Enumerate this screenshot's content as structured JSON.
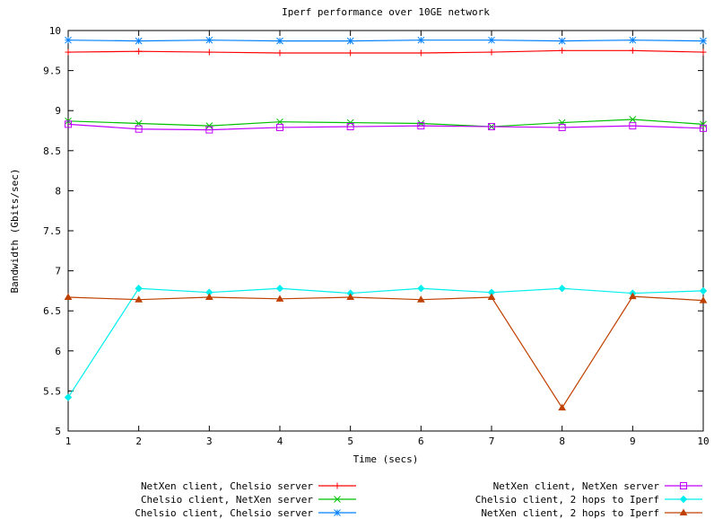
{
  "chart_data": {
    "type": "line",
    "title": "Iperf performance over 10GE network",
    "xlabel": "Time (secs)",
    "ylabel": "Bandwidth (Gbits/sec)",
    "xlim": [
      1,
      10
    ],
    "ylim": [
      5,
      10
    ],
    "xticks": [
      "1",
      "2",
      "3",
      "4",
      "5",
      "6",
      "7",
      "8",
      "9",
      "10"
    ],
    "yticks": [
      "5",
      "5.5",
      "6",
      "6.5",
      "7",
      "7.5",
      "8",
      "8.5",
      "9",
      "9.5",
      "10"
    ],
    "grid": false,
    "legend_position": "bottom",
    "x": [
      1,
      2,
      3,
      4,
      5,
      6,
      7,
      8,
      9,
      10
    ],
    "series": [
      {
        "name": "NetXen client, Chelsio server",
        "color": "#ff0000",
        "marker": "plus",
        "values": [
          9.73,
          9.74,
          9.73,
          9.72,
          9.72,
          9.72,
          9.73,
          9.75,
          9.75,
          9.73
        ]
      },
      {
        "name": "Chelsio client, NetXen server",
        "color": "#00c000",
        "marker": "cross",
        "values": [
          8.87,
          8.84,
          8.81,
          8.86,
          8.85,
          8.84,
          8.8,
          8.85,
          8.89,
          8.83
        ]
      },
      {
        "name": "Chelsio client, Chelsio server",
        "color": "#0080ff",
        "marker": "star",
        "values": [
          9.88,
          9.87,
          9.88,
          9.87,
          9.87,
          9.88,
          9.88,
          9.87,
          9.88,
          9.87
        ]
      },
      {
        "name": "NetXen client, NetXen server",
        "color": "#c000ff",
        "marker": "square",
        "values": [
          8.83,
          8.77,
          8.76,
          8.79,
          8.8,
          8.81,
          8.8,
          8.79,
          8.81,
          8.78
        ]
      },
      {
        "name": "Chelsio client, 2 hops to Iperf",
        "color": "#00eeee",
        "marker": "diamond",
        "values": [
          5.42,
          6.78,
          6.73,
          6.78,
          6.72,
          6.78,
          6.73,
          6.78,
          6.72,
          6.75
        ]
      },
      {
        "name": "NetXen client, 2 hops to Iperf",
        "color": "#c04000",
        "marker": "triangle",
        "values": [
          6.67,
          6.64,
          6.67,
          6.65,
          6.67,
          6.64,
          6.67,
          5.29,
          6.68,
          6.63
        ]
      }
    ]
  }
}
